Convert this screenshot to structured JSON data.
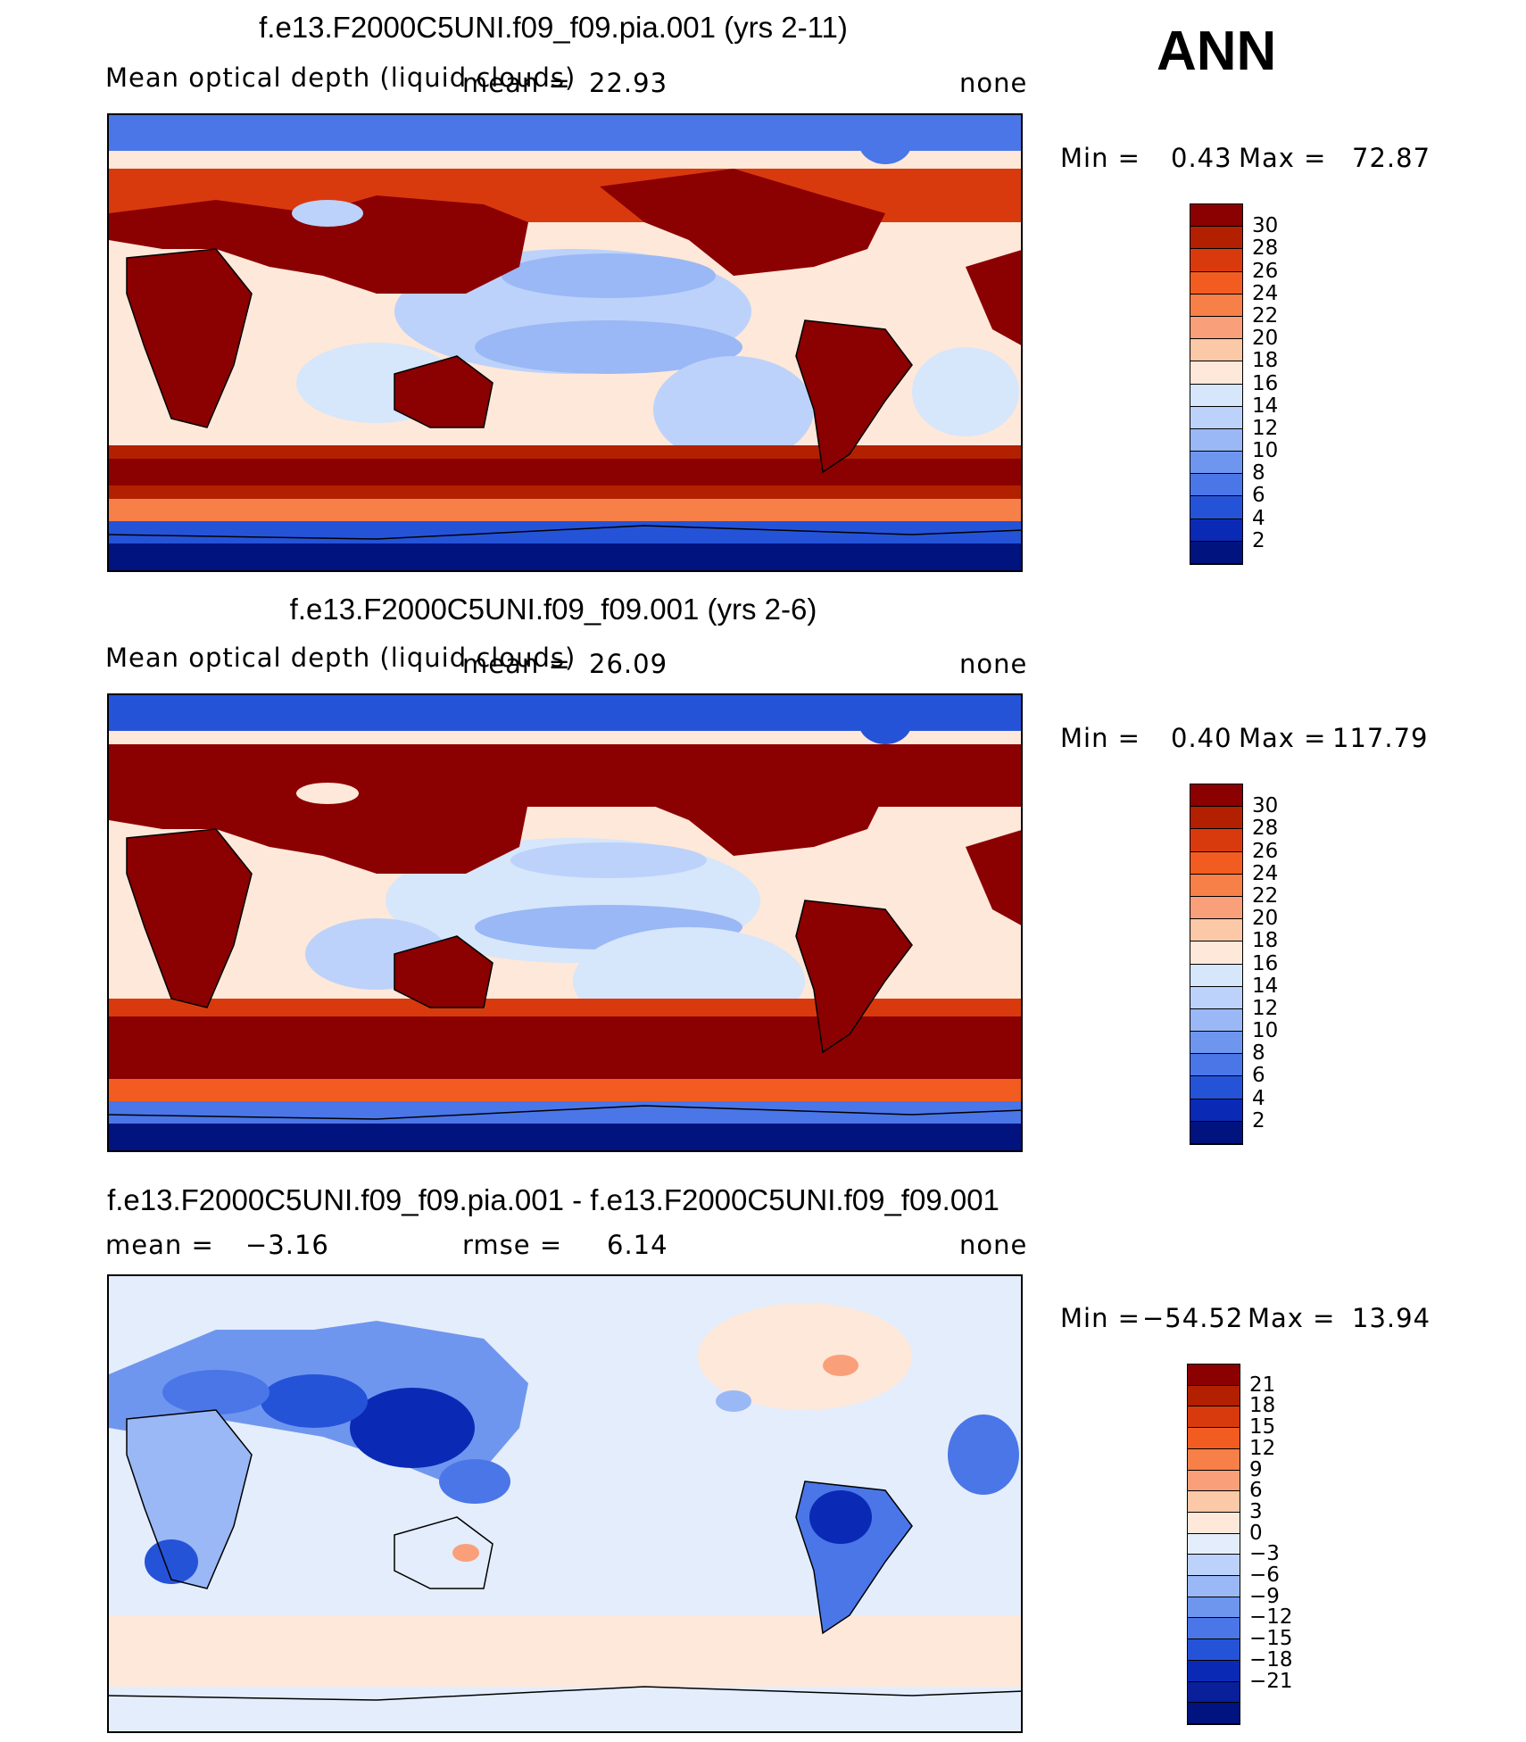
{
  "season": "ANN",
  "panels": [
    {
      "title": "f.e13.F2000C5UNI.f09_f09.pia.001 (yrs 2-11)",
      "variable": "Mean optical depth (liquid clouds)",
      "mean_label": "mean =",
      "mean": "22.93",
      "units": "none",
      "min_label": "Min =",
      "min": "0.43",
      "max_label": "Max =",
      "max": "72.87",
      "colorbar": {
        "ticks": [
          "30",
          "28",
          "26",
          "24",
          "22",
          "20",
          "18",
          "16",
          "14",
          "12",
          "10",
          "8",
          "6",
          "4",
          "2"
        ],
        "colors": [
          "#8b0000",
          "#b22000",
          "#d93a0d",
          "#f25c20",
          "#f77f48",
          "#f9a07a",
          "#fbc8a8",
          "#fde8da",
          "#d6e6fb",
          "#bcd2fa",
          "#9ab8f5",
          "#6f96ef",
          "#4a76e8",
          "#2553d8",
          "#0a2ab6",
          "#00137f"
        ]
      }
    },
    {
      "title": "f.e13.F2000C5UNI.f09_f09.001 (yrs 2-6)",
      "variable": "Mean optical depth (liquid clouds)",
      "mean_label": "mean =",
      "mean": "26.09",
      "units": "none",
      "min_label": "Min =",
      "min": "0.40",
      "max_label": "Max =",
      "max": "117.79",
      "colorbar": {
        "ticks": [
          "30",
          "28",
          "26",
          "24",
          "22",
          "20",
          "18",
          "16",
          "14",
          "12",
          "10",
          "8",
          "6",
          "4",
          "2"
        ],
        "colors": [
          "#8b0000",
          "#b22000",
          "#d93a0d",
          "#f25c20",
          "#f77f48",
          "#f9a07a",
          "#fbc8a8",
          "#fde8da",
          "#d6e6fb",
          "#bcd2fa",
          "#9ab8f5",
          "#6f96ef",
          "#4a76e8",
          "#2553d8",
          "#0a2ab6",
          "#00137f"
        ]
      }
    },
    {
      "title": "f.e13.F2000C5UNI.f09_f09.pia.001 - f.e13.F2000C5UNI.f09_f09.001",
      "mean_label": "mean =",
      "mean": "−3.16",
      "rmse_label": "rmse =",
      "rmse": "6.14",
      "units": "none",
      "min_label": "Min =",
      "min": "−54.52",
      "max_label": "Max =",
      "max": "13.94",
      "colorbar": {
        "ticks": [
          "21",
          "18",
          "15",
          "12",
          "9",
          "6",
          "3",
          "0",
          "−3",
          "−6",
          "−9",
          "−12",
          "−15",
          "−18",
          "−21"
        ],
        "colors": [
          "#8b0000",
          "#b22000",
          "#d93a0d",
          "#f25c20",
          "#f77f48",
          "#f9a07a",
          "#fbc8a8",
          "#fde8da",
          "#e4edfb",
          "#bcd2fa",
          "#9ab8f5",
          "#6f96ef",
          "#4a76e8",
          "#2553d8",
          "#0a2ab6",
          "#0a1f9a",
          "#00137f"
        ]
      }
    }
  ]
}
